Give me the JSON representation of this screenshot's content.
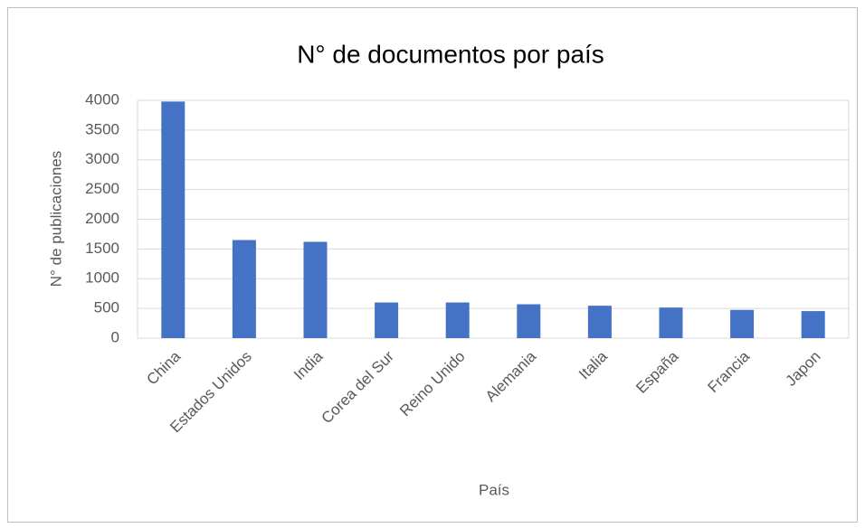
{
  "chart_data": {
    "type": "bar",
    "title": "N° de documentos por país",
    "x_label": "País",
    "y_label": "N° de publicaciones",
    "categories": [
      "China",
      "Estados Unidos",
      "India",
      "Corea del Sur",
      "Reino Unido",
      "Alemania",
      "Italia",
      "España",
      "Francia",
      "Japon"
    ],
    "values": [
      3980,
      1650,
      1620,
      600,
      600,
      570,
      545,
      515,
      475,
      455
    ],
    "color": "#4472c4",
    "ylim": [
      0,
      4000
    ],
    "yticks": [
      0,
      500,
      1000,
      1500,
      2000,
      2500,
      3000,
      3500,
      4000
    ],
    "grid": true
  }
}
